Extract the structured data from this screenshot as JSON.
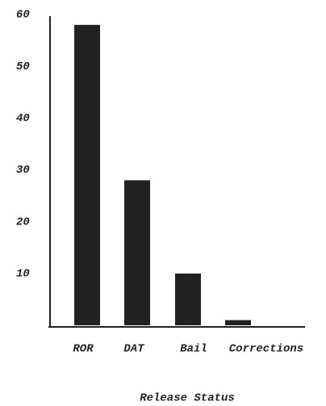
{
  "chart_data": {
    "type": "bar",
    "x_label": "Release Status",
    "categories": [
      "ROR",
      "DAT",
      "Bail",
      "Corrections"
    ],
    "values": [
      58,
      28,
      10,
      1
    ],
    "color": "#222222",
    "ylim": [
      0,
      60
    ],
    "yticks": [
      10,
      20,
      30,
      40,
      50,
      60
    ],
    "grid": false
  }
}
